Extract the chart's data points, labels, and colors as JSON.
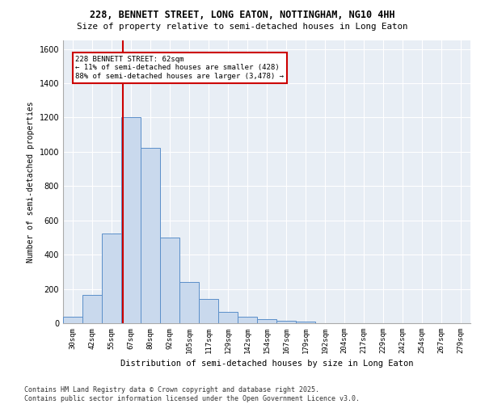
{
  "title1": "228, BENNETT STREET, LONG EATON, NOTTINGHAM, NG10 4HH",
  "title2": "Size of property relative to semi-detached houses in Long Eaton",
  "xlabel": "Distribution of semi-detached houses by size in Long Eaton",
  "ylabel": "Number of semi-detached properties",
  "footnote": "Contains HM Land Registry data © Crown copyright and database right 2025.\nContains public sector information licensed under the Open Government Licence v3.0.",
  "bar_color": "#c9d9ed",
  "bar_edge_color": "#5b8fc9",
  "categories": [
    "30sqm",
    "42sqm",
    "55sqm",
    "67sqm",
    "80sqm",
    "92sqm",
    "105sqm",
    "117sqm",
    "129sqm",
    "142sqm",
    "154sqm",
    "167sqm",
    "179sqm",
    "192sqm",
    "204sqm",
    "217sqm",
    "229sqm",
    "242sqm",
    "254sqm",
    "267sqm",
    "279sqm"
  ],
  "values": [
    40,
    165,
    525,
    1200,
    1025,
    500,
    240,
    140,
    65,
    40,
    25,
    15,
    8,
    0,
    0,
    0,
    0,
    0,
    0,
    0,
    0
  ],
  "subject_label": "228 BENNETT STREET: 62sqm",
  "pct_smaller": 11,
  "count_smaller": 428,
  "pct_larger": 88,
  "count_larger": 3478,
  "annotation_box_color": "#ffffff",
  "annotation_box_edge": "#cc0000",
  "vline_color": "#cc0000",
  "bg_color": "#e8eef5",
  "ylim": [
    0,
    1650
  ],
  "yticks": [
    0,
    200,
    400,
    600,
    800,
    1000,
    1200,
    1400,
    1600
  ],
  "vline_x_index": 2.58
}
